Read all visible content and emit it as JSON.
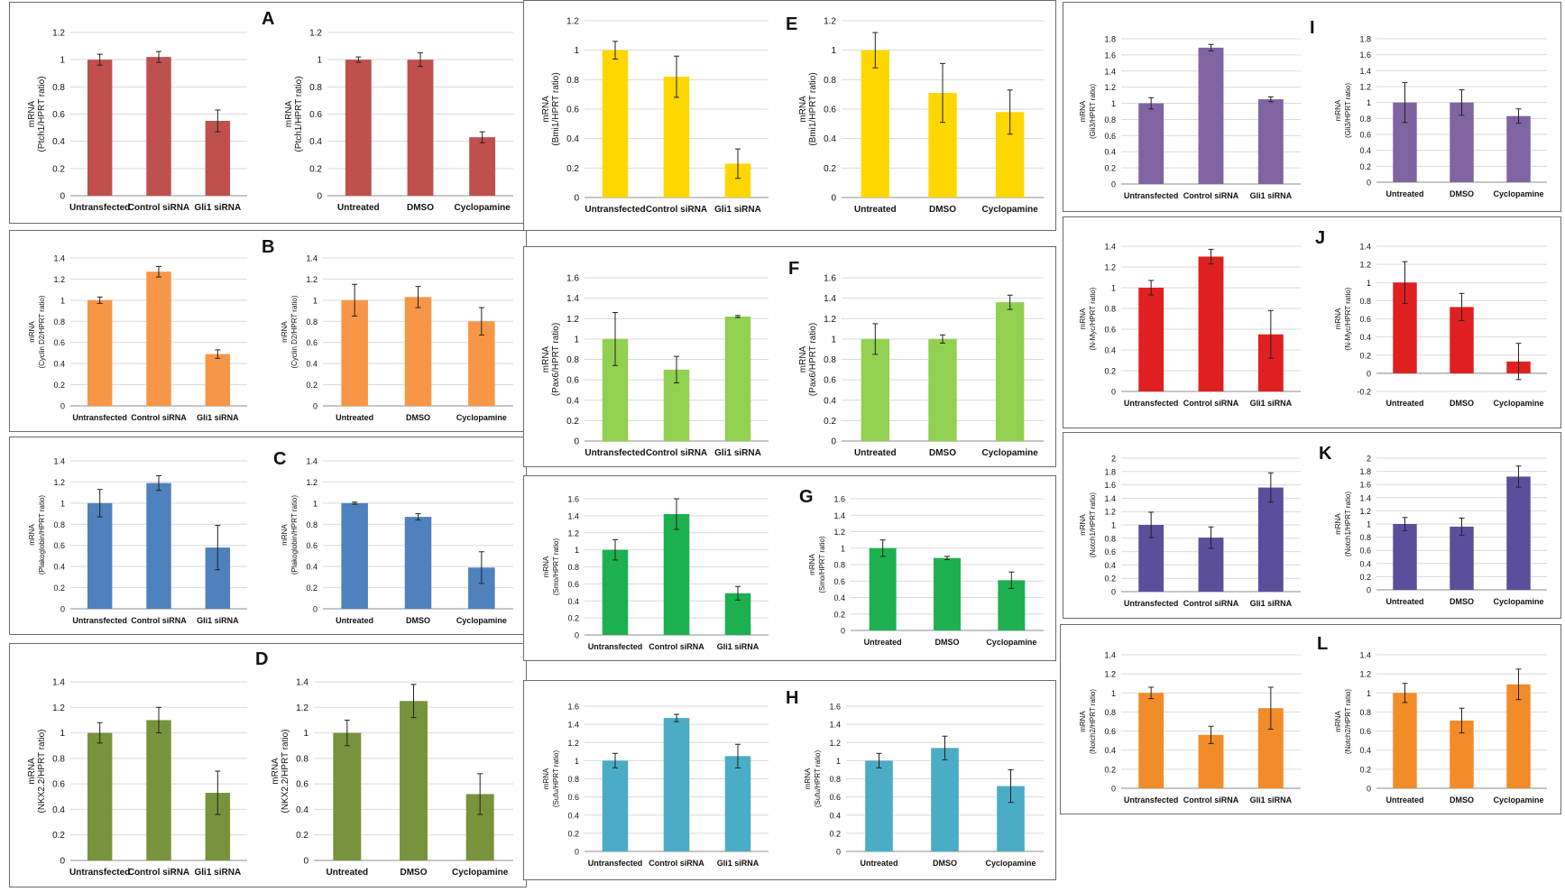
{
  "panel_letters": [
    "A",
    "B",
    "C",
    "D",
    "E",
    "F",
    "G",
    "H",
    "I",
    "J",
    "K",
    "L"
  ],
  "palette": {
    "A": "#c0504d",
    "B": "#f79646",
    "C": "#4f81bd",
    "D": "#77933c",
    "E": "#ffd700",
    "F": "#92d050",
    "G": "#1db050",
    "H": "#4bacc6",
    "I": "#8064a2",
    "J": "#e02020",
    "K": "#5b4f9c",
    "L": "#f28c28"
  },
  "chart_data": [
    {
      "id": "A1",
      "type": "bar",
      "ylabel": [
        "mRNA",
        "(Ptch1/HPRT ratio)"
      ],
      "categories": [
        "Untransfected",
        "Control siRNA",
        "Gli1 siRNA"
      ],
      "values": [
        1.0,
        1.02,
        0.55
      ],
      "errors": [
        0.04,
        0.04,
        0.08
      ],
      "ylim": [
        0,
        1.2
      ],
      "yticks": [
        "0",
        "0.2",
        "0.4",
        "0.6",
        "0.8",
        "1",
        "1.2"
      ]
    },
    {
      "id": "A2",
      "type": "bar",
      "ylabel": [
        "mRNA",
        "(Ptch1/HPRT ratio)"
      ],
      "categories": [
        "Untreated",
        "DMSO",
        "Cyclopamine"
      ],
      "values": [
        1.0,
        1.0,
        0.43
      ],
      "errors": [
        0.02,
        0.05,
        0.04
      ],
      "ylim": [
        0,
        1.2
      ],
      "yticks": [
        "0",
        "0.2",
        "0.4",
        "0.6",
        "0.8",
        "1",
        "1.2"
      ]
    },
    {
      "id": "B1",
      "type": "bar",
      "ylabel": [
        "mRNA",
        "(Cyclin D2/HPRT ratio)"
      ],
      "categories": [
        "Untransfected",
        "Control siRNA",
        "Gli1 siRNA"
      ],
      "values": [
        1.0,
        1.27,
        0.49
      ],
      "errors": [
        0.03,
        0.05,
        0.04
      ],
      "ylim": [
        0,
        1.4
      ],
      "yticks": [
        "0",
        "0.2",
        "0.4",
        "0.6",
        "0.8",
        "1",
        "1.2",
        "1.4"
      ]
    },
    {
      "id": "B2",
      "type": "bar",
      "ylabel": [
        "mRNA",
        "(Cyclin D2/HPRT ratio)"
      ],
      "categories": [
        "Untreated",
        "DMSO",
        "Cyclopamine"
      ],
      "values": [
        1.0,
        1.03,
        0.8
      ],
      "errors": [
        0.15,
        0.1,
        0.13
      ],
      "ylim": [
        0,
        1.4
      ],
      "yticks": [
        "0",
        "0.2",
        "0.4",
        "0.6",
        "0.8",
        "1",
        "1.2",
        "1.4"
      ]
    },
    {
      "id": "C1",
      "type": "bar",
      "ylabel": [
        "mRNA",
        "(Plakoglobin/HPRT ratio)"
      ],
      "categories": [
        "Untransfected",
        "Control siRNA",
        "Gli1 siRNA"
      ],
      "values": [
        1.0,
        1.19,
        0.58
      ],
      "errors": [
        0.13,
        0.07,
        0.21
      ],
      "ylim": [
        0,
        1.4
      ],
      "yticks": [
        "0",
        "0.2",
        "0.4",
        "0.6",
        "0.8",
        "1",
        "1.2",
        "1.4"
      ]
    },
    {
      "id": "C2",
      "type": "bar",
      "ylabel": [
        "mRNA",
        "(Plakoglobin/HPRT ratio)"
      ],
      "categories": [
        "Untreated",
        "DMSO",
        "Cyclopamine"
      ],
      "values": [
        1.0,
        0.87,
        0.39
      ],
      "errors": [
        0.01,
        0.03,
        0.15
      ],
      "ylim": [
        0,
        1.4
      ],
      "yticks": [
        "0",
        "0.2",
        "0.4",
        "0.6",
        "0.8",
        "1",
        "1.2",
        "1.4"
      ]
    },
    {
      "id": "D1",
      "type": "bar",
      "ylabel": [
        "mRNA",
        "(NKX2.2/HPRT ratio)"
      ],
      "categories": [
        "Untransfected",
        "Control siRNA",
        "Gli1 siRNA"
      ],
      "values": [
        1.0,
        1.1,
        0.53
      ],
      "errors": [
        0.08,
        0.1,
        0.17
      ],
      "ylim": [
        0,
        1.4
      ],
      "yticks": [
        "0",
        "0.2",
        "0.4",
        "0.6",
        "0.8",
        "1",
        "1.2",
        "1.4"
      ]
    },
    {
      "id": "D2",
      "type": "bar",
      "ylabel": [
        "mRNA",
        "(NKX2.2/HPRT ratio)"
      ],
      "categories": [
        "Untreated",
        "DMSO",
        "Cyclopamine"
      ],
      "values": [
        1.0,
        1.25,
        0.52
      ],
      "errors": [
        0.1,
        0.13,
        0.16
      ],
      "ylim": [
        0,
        1.4
      ],
      "yticks": [
        "0",
        "0.2",
        "0.4",
        "0.6",
        "0.8",
        "1",
        "1.2",
        "1.4"
      ]
    },
    {
      "id": "E1",
      "type": "bar",
      "ylabel": [
        "mRNA",
        "(Bmi1/HPRT ratio)"
      ],
      "categories": [
        "Untransfected",
        "Control siRNA",
        "Gli1 siRNA"
      ],
      "values": [
        1.0,
        0.82,
        0.23
      ],
      "errors": [
        0.06,
        0.14,
        0.1
      ],
      "ylim": [
        0,
        1.2
      ],
      "yticks": [
        "0",
        "0.2",
        "0.4",
        "0.6",
        "0.8",
        "1",
        "1.2"
      ]
    },
    {
      "id": "E2",
      "type": "bar",
      "ylabel": [
        "mRNA",
        "(Bmi1/HPRT ratio)"
      ],
      "categories": [
        "Untreated",
        "DMSO",
        "Cyclopamine"
      ],
      "values": [
        1.0,
        0.71,
        0.58
      ],
      "errors": [
        0.12,
        0.2,
        0.15
      ],
      "ylim": [
        0,
        1.2
      ],
      "yticks": [
        "0",
        "0.2",
        "0.4",
        "0.6",
        "0.8",
        "1",
        "1.2"
      ]
    },
    {
      "id": "F1",
      "type": "bar",
      "ylabel": [
        "mRNA",
        "(Pax6/HPRT ratio)"
      ],
      "categories": [
        "Untransfected",
        "Control siRNA",
        "Gli1 siRNA"
      ],
      "values": [
        1.0,
        0.7,
        1.22
      ],
      "errors": [
        0.26,
        0.13,
        0.01
      ],
      "ylim": [
        0,
        1.6
      ],
      "yticks": [
        "0",
        "0.2",
        "0.4",
        "0.6",
        "0.8",
        "1",
        "1.2",
        "1.4",
        "1.6"
      ]
    },
    {
      "id": "F2",
      "type": "bar",
      "ylabel": [
        "mRNA",
        "(Pax6/HPRT ratio)"
      ],
      "categories": [
        "Untreated",
        "DMSO",
        "Cyclopamine"
      ],
      "values": [
        1.0,
        1.0,
        1.36
      ],
      "errors": [
        0.15,
        0.04,
        0.07
      ],
      "ylim": [
        0,
        1.6
      ],
      "yticks": [
        "0",
        "0.2",
        "0.4",
        "0.6",
        "0.8",
        "1",
        "1.2",
        "1.4",
        "1.6"
      ]
    },
    {
      "id": "G1",
      "type": "bar",
      "ylabel": [
        "mRNA",
        "(Smo/HPRT ratio)"
      ],
      "categories": [
        "Untransfected",
        "Control siRNA",
        "Gli1 siRNA"
      ],
      "values": [
        1.0,
        1.42,
        0.49
      ],
      "errors": [
        0.12,
        0.18,
        0.08
      ],
      "ylim": [
        0,
        1.6
      ],
      "yticks": [
        "0",
        "0.2",
        "0.4",
        "0.6",
        "0.8",
        "1",
        "1.2",
        "1.4",
        "1.6"
      ]
    },
    {
      "id": "G2",
      "type": "bar",
      "ylabel": [
        "mRNA",
        "(Smo/HPRT ratio)"
      ],
      "categories": [
        "Untreated",
        "DMSO",
        "Cyclopamine"
      ],
      "values": [
        1.0,
        0.88,
        0.61
      ],
      "errors": [
        0.1,
        0.02,
        0.1
      ],
      "ylim": [
        0,
        1.6
      ],
      "yticks": [
        "0",
        "0.2",
        "0.4",
        "0.6",
        "0.8",
        "1",
        "1.2",
        "1.4",
        "1.6"
      ]
    },
    {
      "id": "H1",
      "type": "bar",
      "ylabel": [
        "mRNA",
        "(Sufu/HPRT ratio)"
      ],
      "categories": [
        "Untransfected",
        "Control siRNA",
        "Gli1 siRNA"
      ],
      "values": [
        1.0,
        1.47,
        1.05
      ],
      "errors": [
        0.08,
        0.04,
        0.13
      ],
      "ylim": [
        0,
        1.6
      ],
      "yticks": [
        "0",
        "0.2",
        "0.4",
        "0.6",
        "0.8",
        "1",
        "1.2",
        "1.4",
        "1.6"
      ]
    },
    {
      "id": "H2",
      "type": "bar",
      "ylabel": [
        "mRNA",
        "(Sufu/HPRT ratio)"
      ],
      "categories": [
        "Untreated",
        "DMSO",
        "Cyclopamine"
      ],
      "values": [
        1.0,
        1.14,
        0.72
      ],
      "errors": [
        0.08,
        0.13,
        0.18
      ],
      "ylim": [
        0,
        1.6
      ],
      "yticks": [
        "0",
        "0.2",
        "0.4",
        "0.6",
        "0.8",
        "1",
        "1.2",
        "1.4",
        "1.6"
      ]
    },
    {
      "id": "I1",
      "type": "bar",
      "ylabel": [
        "mRNA",
        "(Gli3/HPRT ratio)"
      ],
      "categories": [
        "Untransfected",
        "Control siRNA",
        "Gli1 siRNA"
      ],
      "values": [
        1.0,
        1.69,
        1.05
      ],
      "errors": [
        0.07,
        0.04,
        0.03
      ],
      "ylim": [
        0,
        1.8
      ],
      "yticks": [
        "0",
        "0.2",
        "0.4",
        "0.6",
        "0.8",
        "1",
        "1.2",
        "1.4",
        "1.6",
        "1.8"
      ]
    },
    {
      "id": "I2",
      "type": "bar",
      "ylabel": [
        "mRNA",
        "(Gli3/HPRT ratio)"
      ],
      "categories": [
        "Untreated",
        "DMSO",
        "Cyclopamine"
      ],
      "values": [
        1.0,
        1.0,
        0.83
      ],
      "errors": [
        0.25,
        0.16,
        0.09
      ],
      "ylim": [
        0,
        1.8
      ],
      "yticks": [
        "0",
        "0.2",
        "0.4",
        "0.6",
        "0.8",
        "1",
        "1.2",
        "1.4",
        "1.6",
        "1.8"
      ]
    },
    {
      "id": "J1",
      "type": "bar",
      "ylabel": [
        "mRNA",
        "(N-Myc/HPRT ratio)"
      ],
      "categories": [
        "Untransfected",
        "Control siRNA",
        "Gli1 siRNA"
      ],
      "values": [
        1.0,
        1.3,
        0.55
      ],
      "errors": [
        0.07,
        0.07,
        0.23
      ],
      "ylim": [
        0,
        1.4
      ],
      "yticks": [
        "0",
        "0.2",
        "0.4",
        "0.6",
        "0.8",
        "1",
        "1.2",
        "1.4"
      ]
    },
    {
      "id": "J2",
      "type": "bar",
      "ylabel": [
        "mRNA",
        "(N-Myc/HPRT ratio)"
      ],
      "categories": [
        "Untreated",
        "DMSO",
        "Cyclopamine"
      ],
      "values": [
        1.0,
        0.73,
        0.13
      ],
      "errors": [
        0.23,
        0.15,
        0.2
      ],
      "ylim": [
        -0.2,
        1.4
      ],
      "yticks": [
        "-0.2",
        "0",
        "0.2",
        "0.4",
        "0.6",
        "0.8",
        "1",
        "1.2",
        "1.4"
      ]
    },
    {
      "id": "K1",
      "type": "bar",
      "ylabel": [
        "mRNA",
        "(Notch1/HPRT ratio)"
      ],
      "categories": [
        "Untransfected",
        "Control siRNA",
        "Gli1 siRNA"
      ],
      "values": [
        1.0,
        0.81,
        1.56
      ],
      "errors": [
        0.19,
        0.16,
        0.22
      ],
      "ylim": [
        0,
        2
      ],
      "yticks": [
        "0",
        "0.2",
        "0.4",
        "0.6",
        "0.8",
        "1",
        "1.2",
        "1.4",
        "1.6",
        "1.8",
        "2"
      ]
    },
    {
      "id": "K2",
      "type": "bar",
      "ylabel": [
        "mRNA",
        "(Notch1/HPRT ratio)"
      ],
      "categories": [
        "Untreated",
        "DMSO",
        "Cyclopamine"
      ],
      "values": [
        1.0,
        0.96,
        1.72
      ],
      "errors": [
        0.1,
        0.13,
        0.16
      ],
      "ylim": [
        0,
        2
      ],
      "yticks": [
        "0",
        "0.2",
        "0.4",
        "0.6",
        "0.8",
        "1",
        "1.2",
        "1.4",
        "1.6",
        "1.8",
        "2"
      ]
    },
    {
      "id": "L1",
      "type": "bar",
      "ylabel": [
        "mRNA",
        "(Notch2/HPRT ratio)"
      ],
      "categories": [
        "Untransfected",
        "Control siRNA",
        "Gli1 siRNA"
      ],
      "values": [
        1.0,
        0.56,
        0.84
      ],
      "errors": [
        0.06,
        0.09,
        0.22
      ],
      "ylim": [
        0,
        1.4
      ],
      "yticks": [
        "0",
        "0.2",
        "0.4",
        "0.6",
        "0.8",
        "1",
        "1.2",
        "1.4"
      ]
    },
    {
      "id": "L2",
      "type": "bar",
      "ylabel": [
        "mRNA",
        "(Notch2/HPRT ratio)"
      ],
      "categories": [
        "Untreated",
        "DMSO",
        "Cyclopamine"
      ],
      "values": [
        1.0,
        0.71,
        1.09
      ],
      "errors": [
        0.1,
        0.13,
        0.16
      ],
      "ylim": [
        0,
        1.4
      ],
      "yticks": [
        "0",
        "0.2",
        "0.4",
        "0.6",
        "0.8",
        "1",
        "1.2",
        "1.4"
      ]
    }
  ]
}
